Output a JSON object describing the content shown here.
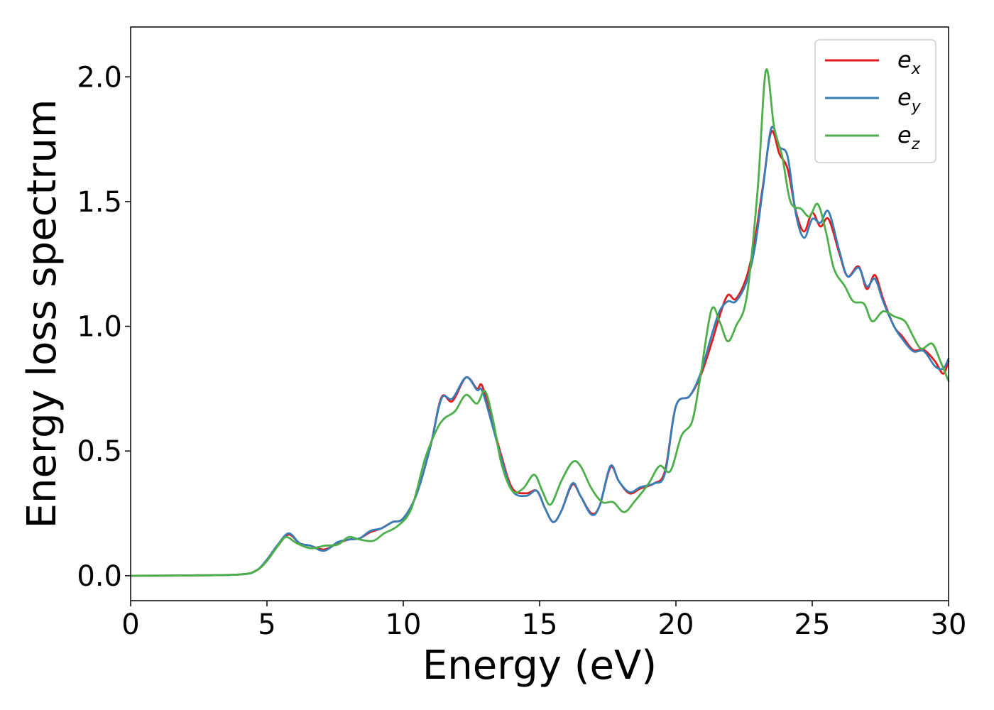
{
  "chart_data": {
    "type": "line",
    "title": "",
    "xlabel": "Energy (eV)",
    "ylabel": "Energy loss spectrum",
    "xlim": [
      0,
      30
    ],
    "ylim": [
      -0.1,
      2.2
    ],
    "xticks": [
      "0",
      "5",
      "10",
      "15",
      "20",
      "25",
      "30"
    ],
    "yticks": [
      "0.0",
      "0.5",
      "1.0",
      "1.5",
      "2.0"
    ],
    "grid": false,
    "legend_position": "top-right",
    "series": [
      {
        "name": "e",
        "sub": "x",
        "color": "#e41a1c",
        "points": [
          [
            0,
            0
          ],
          [
            2,
            0.001
          ],
          [
            4,
            0.005
          ],
          [
            4.6,
            0.02
          ],
          [
            5,
            0.06
          ],
          [
            5.4,
            0.12
          ],
          [
            5.8,
            0.165
          ],
          [
            6.2,
            0.13
          ],
          [
            6.6,
            0.12
          ],
          [
            7.1,
            0.105
          ],
          [
            7.6,
            0.13
          ],
          [
            8,
            0.145
          ],
          [
            8.4,
            0.15
          ],
          [
            8.8,
            0.175
          ],
          [
            9.2,
            0.19
          ],
          [
            9.6,
            0.215
          ],
          [
            10,
            0.23
          ],
          [
            10.5,
            0.33
          ],
          [
            11,
            0.52
          ],
          [
            11.4,
            0.715
          ],
          [
            11.8,
            0.7
          ],
          [
            12.3,
            0.795
          ],
          [
            12.7,
            0.75
          ],
          [
            12.9,
            0.76
          ],
          [
            13.3,
            0.6
          ],
          [
            13.6,
            0.48
          ],
          [
            14,
            0.35
          ],
          [
            14.5,
            0.33
          ],
          [
            14.9,
            0.34
          ],
          [
            15.2,
            0.27
          ],
          [
            15.5,
            0.215
          ],
          [
            15.8,
            0.26
          ],
          [
            16.2,
            0.365
          ],
          [
            16.5,
            0.32
          ],
          [
            16.9,
            0.25
          ],
          [
            17.2,
            0.28
          ],
          [
            17.6,
            0.435
          ],
          [
            17.9,
            0.38
          ],
          [
            18.3,
            0.33
          ],
          [
            18.7,
            0.35
          ],
          [
            19.2,
            0.37
          ],
          [
            19.6,
            0.42
          ],
          [
            20,
            0.68
          ],
          [
            20.5,
            0.72
          ],
          [
            20.9,
            0.8
          ],
          [
            21.3,
            0.93
          ],
          [
            21.6,
            1.04
          ],
          [
            21.9,
            1.125
          ],
          [
            22.2,
            1.11
          ],
          [
            22.6,
            1.2
          ],
          [
            22.9,
            1.35
          ],
          [
            23.2,
            1.57
          ],
          [
            23.5,
            1.78
          ],
          [
            23.8,
            1.69
          ],
          [
            24.1,
            1.63
          ],
          [
            24.4,
            1.46
          ],
          [
            24.7,
            1.38
          ],
          [
            25,
            1.455
          ],
          [
            25.3,
            1.4
          ],
          [
            25.6,
            1.43
          ],
          [
            26,
            1.29
          ],
          [
            26.3,
            1.2
          ],
          [
            26.7,
            1.24
          ],
          [
            27,
            1.15
          ],
          [
            27.3,
            1.205
          ],
          [
            27.6,
            1.11
          ],
          [
            28,
            1.0
          ],
          [
            28.3,
            0.96
          ],
          [
            28.7,
            0.905
          ],
          [
            29.1,
            0.905
          ],
          [
            29.5,
            0.86
          ],
          [
            29.8,
            0.81
          ],
          [
            30,
            0.86
          ]
        ]
      },
      {
        "name": "e",
        "sub": "y",
        "color": "#377eb8",
        "points": [
          [
            0,
            0
          ],
          [
            2,
            0.001
          ],
          [
            4,
            0.005
          ],
          [
            4.6,
            0.02
          ],
          [
            5,
            0.065
          ],
          [
            5.4,
            0.125
          ],
          [
            5.8,
            0.17
          ],
          [
            6.2,
            0.13
          ],
          [
            6.6,
            0.12
          ],
          [
            7.1,
            0.1
          ],
          [
            7.6,
            0.135
          ],
          [
            8,
            0.145
          ],
          [
            8.4,
            0.15
          ],
          [
            8.8,
            0.18
          ],
          [
            9.2,
            0.19
          ],
          [
            9.6,
            0.215
          ],
          [
            10,
            0.23
          ],
          [
            10.5,
            0.33
          ],
          [
            11,
            0.52
          ],
          [
            11.4,
            0.71
          ],
          [
            11.8,
            0.71
          ],
          [
            12.3,
            0.795
          ],
          [
            12.7,
            0.745
          ],
          [
            12.9,
            0.74
          ],
          [
            13.3,
            0.59
          ],
          [
            13.6,
            0.47
          ],
          [
            14,
            0.34
          ],
          [
            14.5,
            0.32
          ],
          [
            14.9,
            0.34
          ],
          [
            15.2,
            0.27
          ],
          [
            15.5,
            0.215
          ],
          [
            15.8,
            0.26
          ],
          [
            16.2,
            0.37
          ],
          [
            16.5,
            0.32
          ],
          [
            16.9,
            0.245
          ],
          [
            17.2,
            0.28
          ],
          [
            17.6,
            0.44
          ],
          [
            17.9,
            0.38
          ],
          [
            18.3,
            0.335
          ],
          [
            18.7,
            0.355
          ],
          [
            19.2,
            0.37
          ],
          [
            19.6,
            0.41
          ],
          [
            20,
            0.68
          ],
          [
            20.5,
            0.72
          ],
          [
            20.9,
            0.81
          ],
          [
            21.3,
            0.96
          ],
          [
            21.6,
            1.06
          ],
          [
            21.9,
            1.1
          ],
          [
            22.2,
            1.1
          ],
          [
            22.6,
            1.18
          ],
          [
            22.9,
            1.32
          ],
          [
            23.2,
            1.56
          ],
          [
            23.5,
            1.795
          ],
          [
            23.8,
            1.72
          ],
          [
            24.1,
            1.68
          ],
          [
            24.4,
            1.45
          ],
          [
            24.7,
            1.355
          ],
          [
            25,
            1.43
          ],
          [
            25.3,
            1.415
          ],
          [
            25.6,
            1.46
          ],
          [
            26,
            1.3
          ],
          [
            26.3,
            1.2
          ],
          [
            26.7,
            1.235
          ],
          [
            27,
            1.16
          ],
          [
            27.3,
            1.19
          ],
          [
            27.6,
            1.1
          ],
          [
            28,
            1.0
          ],
          [
            28.3,
            0.95
          ],
          [
            28.7,
            0.9
          ],
          [
            29.1,
            0.9
          ],
          [
            29.5,
            0.84
          ],
          [
            29.8,
            0.83
          ],
          [
            30,
            0.87
          ]
        ]
      },
      {
        "name": "e",
        "sub": "z",
        "color": "#4daf4a",
        "points": [
          [
            0,
            0
          ],
          [
            2,
            0.001
          ],
          [
            4,
            0.005
          ],
          [
            4.6,
            0.02
          ],
          [
            5,
            0.06
          ],
          [
            5.4,
            0.12
          ],
          [
            5.7,
            0.155
          ],
          [
            6.1,
            0.13
          ],
          [
            6.6,
            0.11
          ],
          [
            7.1,
            0.12
          ],
          [
            7.6,
            0.125
          ],
          [
            8,
            0.155
          ],
          [
            8.4,
            0.145
          ],
          [
            8.9,
            0.14
          ],
          [
            9.3,
            0.17
          ],
          [
            9.8,
            0.2
          ],
          [
            10.3,
            0.27
          ],
          [
            10.8,
            0.47
          ],
          [
            11.2,
            0.58
          ],
          [
            11.5,
            0.63
          ],
          [
            11.9,
            0.66
          ],
          [
            12.3,
            0.725
          ],
          [
            12.7,
            0.69
          ],
          [
            13,
            0.74
          ],
          [
            13.3,
            0.62
          ],
          [
            13.6,
            0.45
          ],
          [
            14,
            0.34
          ],
          [
            14.4,
            0.35
          ],
          [
            14.8,
            0.405
          ],
          [
            15.1,
            0.34
          ],
          [
            15.4,
            0.285
          ],
          [
            15.8,
            0.38
          ],
          [
            16.2,
            0.455
          ],
          [
            16.5,
            0.44
          ],
          [
            16.9,
            0.35
          ],
          [
            17.3,
            0.295
          ],
          [
            17.7,
            0.295
          ],
          [
            18.1,
            0.255
          ],
          [
            18.5,
            0.3
          ],
          [
            19,
            0.37
          ],
          [
            19.4,
            0.44
          ],
          [
            19.8,
            0.42
          ],
          [
            20.2,
            0.56
          ],
          [
            20.6,
            0.62
          ],
          [
            20.9,
            0.8
          ],
          [
            21.3,
            1.065
          ],
          [
            21.6,
            1.02
          ],
          [
            21.9,
            0.94
          ],
          [
            22.2,
            1.0
          ],
          [
            22.6,
            1.12
          ],
          [
            23,
            1.55
          ],
          [
            23.3,
            2.025
          ],
          [
            23.6,
            1.8
          ],
          [
            23.9,
            1.68
          ],
          [
            24.2,
            1.5
          ],
          [
            24.6,
            1.47
          ],
          [
            24.9,
            1.44
          ],
          [
            25.2,
            1.49
          ],
          [
            25.5,
            1.38
          ],
          [
            25.8,
            1.23
          ],
          [
            26.2,
            1.16
          ],
          [
            26.5,
            1.1
          ],
          [
            26.9,
            1.09
          ],
          [
            27.2,
            1.02
          ],
          [
            27.6,
            1.06
          ],
          [
            28,
            1.04
          ],
          [
            28.4,
            1.02
          ],
          [
            28.7,
            0.96
          ],
          [
            29,
            0.91
          ],
          [
            29.4,
            0.93
          ],
          [
            29.7,
            0.86
          ],
          [
            30,
            0.78
          ]
        ]
      }
    ]
  }
}
